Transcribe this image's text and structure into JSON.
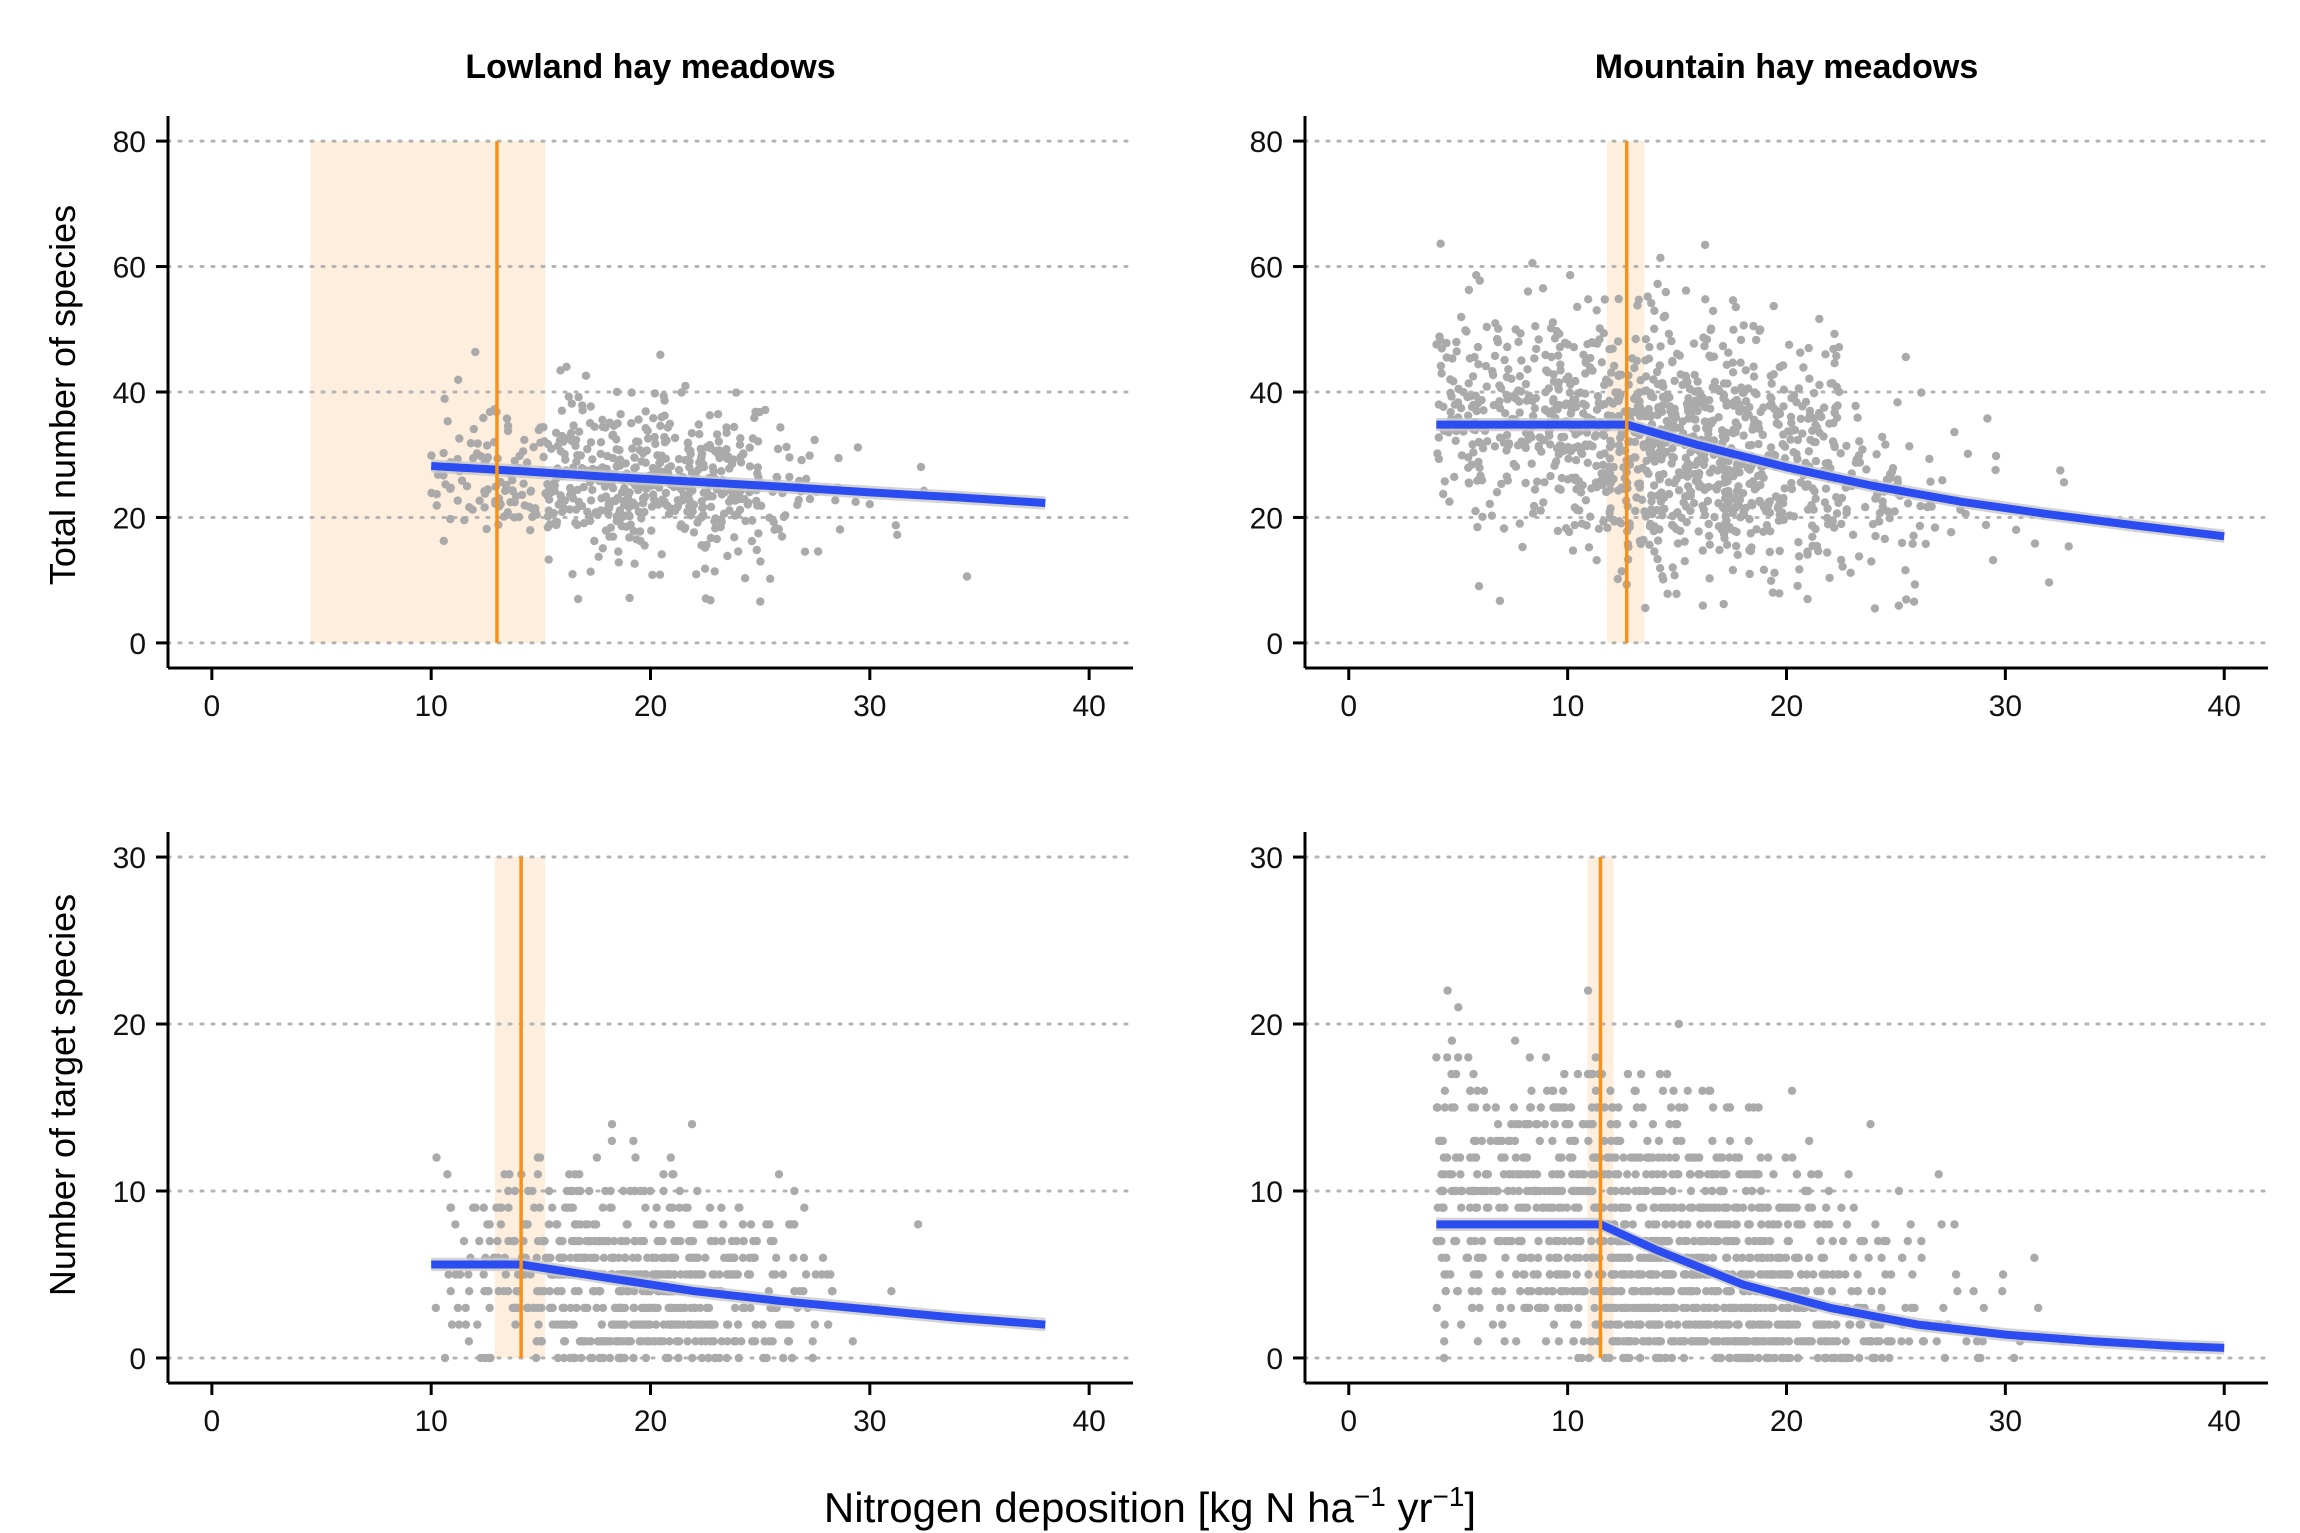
{
  "figure": {
    "ylabel_top": "Total number of species",
    "ylabel_bottom": "Number of target species",
    "xlabel_main": "Nitrogen deposition [kg N ha",
    "xlabel_sup1": "−1",
    "xlabel_mid": " yr",
    "xlabel_sup2": "−1",
    "xlabel_end": "]"
  },
  "colors": {
    "points": "#aaaaaa",
    "fit_line": "#2a4cf0",
    "fit_band": "#c8c8c8",
    "threshold_line": "#f5921e",
    "threshold_band": "#fdeedd",
    "grid": "#b3b3b3"
  },
  "chart_data": [
    {
      "type": "scatter",
      "panel": "top-left",
      "title": "Lowland hay meadows",
      "xlabel": "Nitrogen deposition [kg N ha−1 yr−1]",
      "ylabel": "Total number of species",
      "xlim": [
        -2,
        42
      ],
      "ylim": [
        -4,
        84
      ],
      "xticks": [
        0,
        10,
        20,
        30,
        40
      ],
      "yticks": [
        0,
        20,
        40,
        60,
        80
      ],
      "grid": "horizontal-dotted",
      "threshold": {
        "x": 13.0,
        "ci": [
          4.5,
          15.2
        ]
      },
      "fit": {
        "x": [
          10,
          14,
          18,
          22,
          26,
          30,
          34,
          38
        ],
        "y": [
          28.2,
          27.4,
          26.5,
          25.7,
          24.9,
          24.0,
          23.2,
          22.3
        ]
      },
      "cloud": {
        "count": 600,
        "seed": 11,
        "x_center": 19.5,
        "x_sd": 4.2,
        "x_min": 10,
        "x_max": 38,
        "y_center": 26,
        "y_sd": 6.5,
        "slope": -0.2,
        "y_min": 5,
        "y_max": 53,
        "integer_y": false
      }
    },
    {
      "type": "scatter",
      "panel": "top-right",
      "title": "Mountain hay meadows",
      "xlabel": "Nitrogen deposition [kg N ha−1 yr−1]",
      "ylabel": "Total number of species",
      "xlim": [
        -2,
        42
      ],
      "ylim": [
        -4,
        84
      ],
      "xticks": [
        0,
        10,
        20,
        30,
        40
      ],
      "yticks": [
        0,
        20,
        40,
        60,
        80
      ],
      "grid": "horizontal-dotted",
      "threshold": {
        "x": 12.7,
        "ci": [
          11.8,
          13.5
        ]
      },
      "fit": {
        "x": [
          4,
          8,
          12.7,
          16,
          20,
          24,
          28,
          32,
          36,
          40
        ],
        "y": [
          34.8,
          34.8,
          34.8,
          31.5,
          28.0,
          25.0,
          22.5,
          20.5,
          18.7,
          17.0
        ]
      },
      "cloud": {
        "count": 1200,
        "seed": 23,
        "x_center": 14.5,
        "x_sd": 5.8,
        "x_min": 4,
        "x_max": 38,
        "y_center": 32,
        "y_sd": 9.5,
        "slope": -0.55,
        "y_min": 5,
        "y_max": 71,
        "integer_y": false
      }
    },
    {
      "type": "scatter",
      "panel": "bottom-left",
      "title": "",
      "xlabel": "Nitrogen deposition [kg N ha−1 yr−1]",
      "ylabel": "Number of target species",
      "xlim": [
        -2,
        42
      ],
      "ylim": [
        -1.5,
        31.5
      ],
      "xticks": [
        0,
        10,
        20,
        30,
        40
      ],
      "yticks": [
        0,
        10,
        20,
        30
      ],
      "grid": "horizontal-dotted",
      "threshold": {
        "x": 14.1,
        "ci": [
          12.9,
          15.2
        ]
      },
      "fit": {
        "x": [
          10,
          12,
          14.1,
          18,
          22,
          26,
          30,
          34,
          38
        ],
        "y": [
          5.6,
          5.6,
          5.6,
          4.8,
          4.0,
          3.4,
          2.9,
          2.4,
          2.0
        ]
      },
      "cloud": {
        "count": 700,
        "seed": 37,
        "x_center": 19.5,
        "x_sd": 4.2,
        "x_min": 10,
        "x_max": 38,
        "y_center": 4.5,
        "y_sd": 3.2,
        "slope": -0.15,
        "y_min": 0,
        "y_max": 18,
        "integer_y": true
      }
    },
    {
      "type": "scatter",
      "panel": "bottom-right",
      "title": "",
      "xlabel": "Nitrogen deposition [kg N ha−1 yr−1]",
      "ylabel": "Number of target species",
      "xlim": [
        -2,
        42
      ],
      "ylim": [
        -1.5,
        31.5
      ],
      "xticks": [
        0,
        10,
        20,
        30,
        40
      ],
      "yticks": [
        0,
        10,
        20,
        30
      ],
      "grid": "horizontal-dotted",
      "threshold": {
        "x": 11.5,
        "ci": [
          10.9,
          12.1
        ]
      },
      "fit": {
        "x": [
          4,
          8,
          11.5,
          14,
          18,
          22,
          26,
          30,
          34,
          38,
          40
        ],
        "y": [
          8.0,
          8.0,
          8.0,
          6.5,
          4.4,
          3.0,
          2.0,
          1.4,
          1.0,
          0.7,
          0.6
        ]
      },
      "cloud": {
        "count": 1400,
        "seed": 53,
        "x_center": 14.5,
        "x_sd": 5.8,
        "x_min": 4,
        "x_max": 38,
        "y_center": 6.5,
        "y_sd": 4.5,
        "slope": -0.35,
        "y_min": 0,
        "y_max": 28,
        "integer_y": true
      }
    }
  ]
}
